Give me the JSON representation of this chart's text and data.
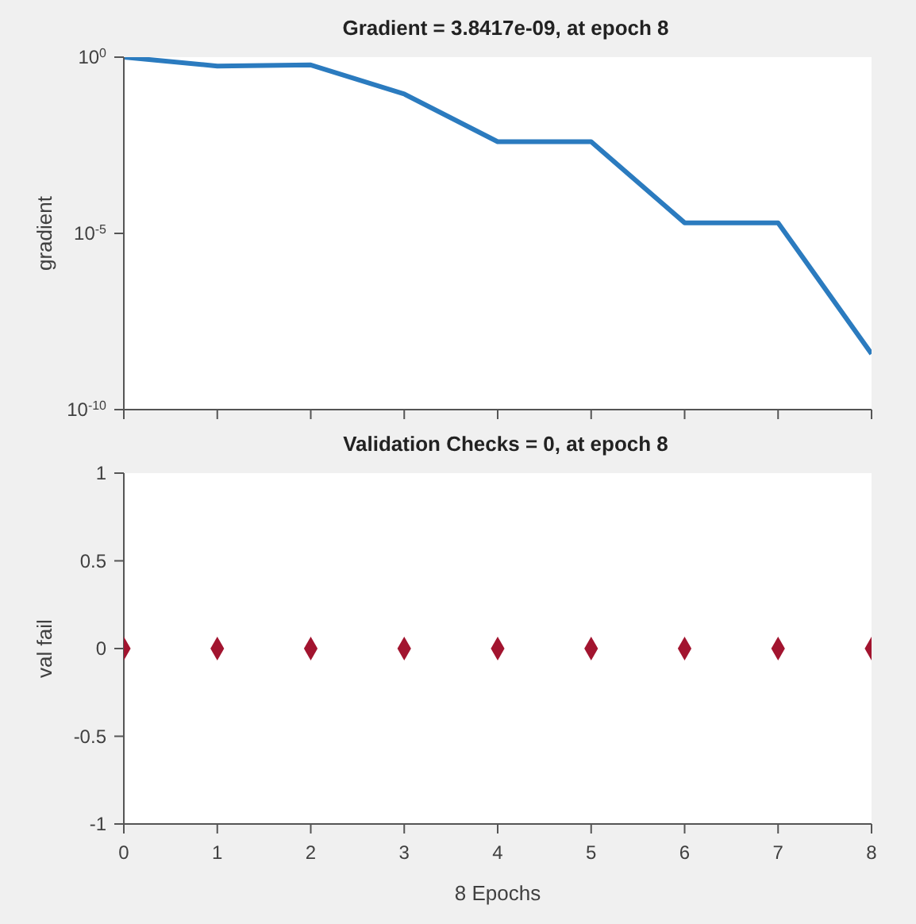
{
  "chart_data": [
    {
      "type": "line",
      "title": "Gradient = 3.8417e-09, at epoch 8",
      "ylabel": "gradient",
      "x": [
        0,
        1,
        2,
        3,
        4,
        5,
        6,
        7,
        8
      ],
      "series": [
        {
          "color": "#2b7bbf",
          "values": [
            1,
            0.56,
            0.6,
            0.09,
            0.004,
            0.004,
            2e-05,
            2e-05,
            3.8417e-09
          ]
        }
      ],
      "xlim": [
        0,
        8
      ],
      "xticks": [
        0,
        1,
        2,
        3,
        4,
        5,
        6,
        7,
        8
      ],
      "ylim": [
        1e-10,
        1
      ],
      "yticks": [
        {
          "value": 1,
          "label": "10$^{0}$"
        },
        {
          "value": 1e-05,
          "label": "10$^{-5}$"
        },
        {
          "value": 1e-10,
          "label": "10$^{-10}$"
        }
      ],
      "log": true,
      "tick_labels": "y",
      "marker": "none",
      "line_style": "solid",
      "grid": false,
      "legend": false
    },
    {
      "type": "scatter",
      "title": "Validation Checks = 0, at epoch 8",
      "xlabel": "8 Epochs",
      "ylabel": "val fail",
      "x": [
        0,
        1,
        2,
        3,
        4,
        5,
        6,
        7,
        8
      ],
      "series": [
        {
          "color": "#a2142f",
          "values": [
            0,
            0,
            0,
            0,
            0,
            0,
            0,
            0,
            0
          ]
        }
      ],
      "xlim": [
        0,
        8
      ],
      "xticks": [
        0,
        1,
        2,
        3,
        4,
        5,
        6,
        7,
        8
      ],
      "ylim": [
        -1,
        1
      ],
      "yticks": [
        -1,
        -0.5,
        0,
        0.5,
        1
      ],
      "marker": "diamond",
      "grid": false,
      "legend": false
    }
  ]
}
